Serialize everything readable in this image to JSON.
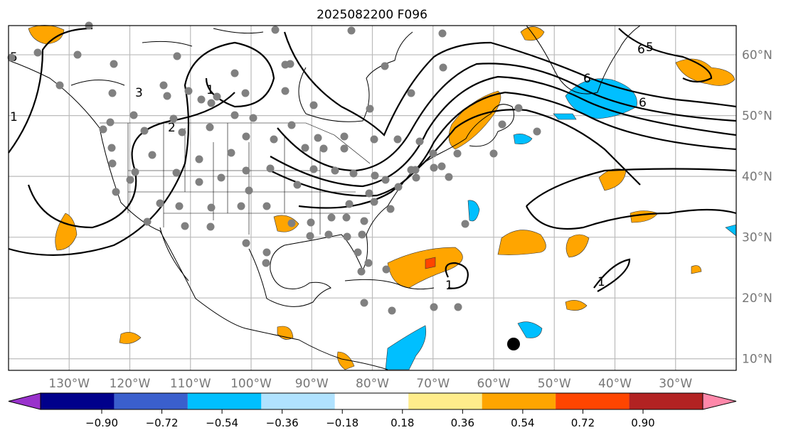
{
  "title": "2025082200 F096",
  "map": {
    "lon_range": [
      -140,
      -20
    ],
    "lat_range": [
      8.1,
      64.8
    ],
    "lon_ticks": [
      {
        "value": -130,
        "label": "130°W"
      },
      {
        "value": -120,
        "label": "120°W"
      },
      {
        "value": -110,
        "label": "110°W"
      },
      {
        "value": -100,
        "label": "100°W"
      },
      {
        "value": -90,
        "label": "90°W"
      },
      {
        "value": -80,
        "label": "80°W"
      },
      {
        "value": -70,
        "label": "70°W"
      },
      {
        "value": -60,
        "label": "60°W"
      },
      {
        "value": -50,
        "label": "50°W"
      },
      {
        "value": -40,
        "label": "40°W"
      },
      {
        "value": -30,
        "label": "30°W"
      }
    ],
    "lat_ticks": [
      {
        "value": 60,
        "label": "60°N"
      },
      {
        "value": 50,
        "label": "50°N"
      },
      {
        "value": 40,
        "label": "40°N"
      },
      {
        "value": 30,
        "label": "30°N"
      },
      {
        "value": 20,
        "label": "20°N"
      },
      {
        "value": 10,
        "label": "10°N"
      }
    ],
    "contour_labels": [
      "1",
      "2",
      "3",
      "1",
      "6",
      "5",
      "6",
      "5",
      "6",
      "1",
      "1"
    ]
  },
  "colorbar": {
    "colors": [
      "#9932CC",
      "#00008B",
      "#3A5FCD",
      "#00BFFF",
      "#B0E2FF",
      "#FFFFFF",
      "#FFEC8B",
      "#FFA500",
      "#FF4500",
      "#B22222",
      "#FF88AA"
    ],
    "ticks": [
      "−0.90",
      "−0.72",
      "−0.54",
      "−0.36",
      "−0.18",
      "0.18",
      "0.36",
      "0.54",
      "0.72",
      "0.90"
    ]
  }
}
